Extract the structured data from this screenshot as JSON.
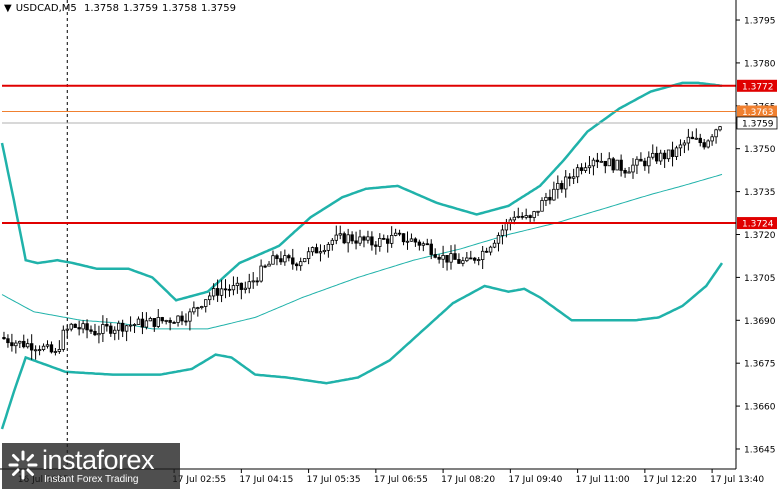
{
  "symbol": {
    "name": "USDCAD,M5",
    "open": "1.3758",
    "high": "1.3759",
    "low": "1.3758",
    "close": "1.3759"
  },
  "logo": {
    "brand": "instaforex",
    "tagline": "Instant Forex Trading"
  },
  "colors": {
    "candle": "#000000",
    "band": "#20b2aa",
    "level": "#e00000",
    "level_secondary": "#f08030",
    "price_line": "#b0b0b0"
  },
  "chart_data": {
    "type": "line",
    "title": "",
    "ylim": [
      1.3638,
      1.3802
    ],
    "y_ticks": [
      "1.3795",
      "1.3780",
      "1.3765",
      "1.3750",
      "1.3735",
      "1.3720",
      "1.3705",
      "1.3690",
      "1.3675",
      "1.3660",
      "1.3645"
    ],
    "x_ticks": [
      {
        "i": 4,
        "label": "16 Jul 2025"
      },
      {
        "i": 43,
        "label": "17 Jul 02:55"
      },
      {
        "i": 60,
        "label": "17 Jul 04:15"
      },
      {
        "i": 77,
        "label": "17 Jul 05:35"
      },
      {
        "i": 94,
        "label": "17 Jul 06:55"
      },
      {
        "i": 111,
        "label": "17 Jul 08:20"
      },
      {
        "i": 128,
        "label": "17 Jul 09:40"
      },
      {
        "i": 145,
        "label": "17 Jul 11:00"
      },
      {
        "i": 162,
        "label": "17 Jul 12:20"
      },
      {
        "i": 179,
        "label": "17 Jul 13:40"
      }
    ],
    "levels": [
      {
        "value": 1.3772,
        "label": "1.3772",
        "kind": "resistance"
      },
      {
        "value": 1.3724,
        "label": "1.3724",
        "kind": "support"
      },
      {
        "value": 1.3763,
        "label": "1.3763",
        "kind": "secondary"
      }
    ],
    "current_price": {
      "value": 1.3759,
      "label": "1.3759"
    },
    "vline_index": 16,
    "candle_count": 182,
    "close_anchors": [
      [
        0,
        1.3684
      ],
      [
        5,
        1.3682
      ],
      [
        10,
        1.3681
      ],
      [
        14,
        1.3678
      ],
      [
        16,
        1.3685
      ],
      [
        18,
        1.3688
      ],
      [
        24,
        1.3686
      ],
      [
        30,
        1.3688
      ],
      [
        36,
        1.3689
      ],
      [
        42,
        1.369
      ],
      [
        48,
        1.3692
      ],
      [
        52,
        1.3698
      ],
      [
        56,
        1.3701
      ],
      [
        62,
        1.3701
      ],
      [
        66,
        1.3707
      ],
      [
        70,
        1.3712
      ],
      [
        74,
        1.371
      ],
      [
        78,
        1.3713
      ],
      [
        84,
        1.3718
      ],
      [
        88,
        1.3719
      ],
      [
        94,
        1.3717
      ],
      [
        100,
        1.3719
      ],
      [
        104,
        1.3718
      ],
      [
        108,
        1.3716
      ],
      [
        112,
        1.3712
      ],
      [
        118,
        1.371
      ],
      [
        122,
        1.3714
      ],
      [
        126,
        1.372
      ],
      [
        130,
        1.3727
      ],
      [
        134,
        1.3725
      ],
      [
        138,
        1.3733
      ],
      [
        142,
        1.3737
      ],
      [
        146,
        1.3743
      ],
      [
        150,
        1.3747
      ],
      [
        154,
        1.3745
      ],
      [
        158,
        1.3743
      ],
      [
        162,
        1.3745
      ],
      [
        166,
        1.3747
      ],
      [
        170,
        1.3748
      ],
      [
        174,
        1.3753
      ],
      [
        178,
        1.3752
      ],
      [
        182,
        1.3759
      ]
    ],
    "bands": {
      "upper": [
        [
          0,
          1.3752
        ],
        [
          3,
          1.3732
        ],
        [
          6,
          1.3711
        ],
        [
          9,
          1.371
        ],
        [
          14,
          1.3711
        ],
        [
          18,
          1.371
        ],
        [
          24,
          1.3708
        ],
        [
          32,
          1.3708
        ],
        [
          38,
          1.3705
        ],
        [
          44,
          1.3697
        ],
        [
          52,
          1.37
        ],
        [
          60,
          1.371
        ],
        [
          70,
          1.3716
        ],
        [
          78,
          1.3726
        ],
        [
          86,
          1.3733
        ],
        [
          92,
          1.3736
        ],
        [
          100,
          1.3737
        ],
        [
          110,
          1.3731
        ],
        [
          120,
          1.3727
        ],
        [
          128,
          1.373
        ],
        [
          136,
          1.3737
        ],
        [
          142,
          1.3746
        ],
        [
          148,
          1.3756
        ],
        [
          156,
          1.3764
        ],
        [
          164,
          1.377
        ],
        [
          172,
          1.3773
        ],
        [
          176,
          1.3773
        ],
        [
          182,
          1.3772
        ]
      ],
      "middle": [
        [
          0,
          1.3699
        ],
        [
          8,
          1.3693
        ],
        [
          20,
          1.369
        ],
        [
          30,
          1.3689
        ],
        [
          38,
          1.3687
        ],
        [
          52,
          1.3687
        ],
        [
          64,
          1.3691
        ],
        [
          76,
          1.3698
        ],
        [
          90,
          1.3705
        ],
        [
          104,
          1.3711
        ],
        [
          116,
          1.3715
        ],
        [
          128,
          1.372
        ],
        [
          140,
          1.3724
        ],
        [
          152,
          1.3729
        ],
        [
          164,
          1.3734
        ],
        [
          172,
          1.3737
        ],
        [
          182,
          1.3741
        ]
      ],
      "lower": [
        [
          0,
          1.3652
        ],
        [
          3,
          1.3665
        ],
        [
          6,
          1.3677
        ],
        [
          10,
          1.3675
        ],
        [
          16,
          1.3672
        ],
        [
          28,
          1.3671
        ],
        [
          40,
          1.3671
        ],
        [
          48,
          1.3673
        ],
        [
          54,
          1.3678
        ],
        [
          58,
          1.3677
        ],
        [
          64,
          1.3671
        ],
        [
          72,
          1.367
        ],
        [
          82,
          1.3668
        ],
        [
          90,
          1.367
        ],
        [
          98,
          1.3676
        ],
        [
          106,
          1.3686
        ],
        [
          114,
          1.3696
        ],
        [
          122,
          1.3702
        ],
        [
          128,
          1.37
        ],
        [
          132,
          1.3701
        ],
        [
          136,
          1.3698
        ],
        [
          144,
          1.369
        ],
        [
          152,
          1.369
        ],
        [
          160,
          1.369
        ],
        [
          166,
          1.3691
        ],
        [
          172,
          1.3695
        ],
        [
          178,
          1.3702
        ],
        [
          182,
          1.371
        ]
      ]
    }
  }
}
